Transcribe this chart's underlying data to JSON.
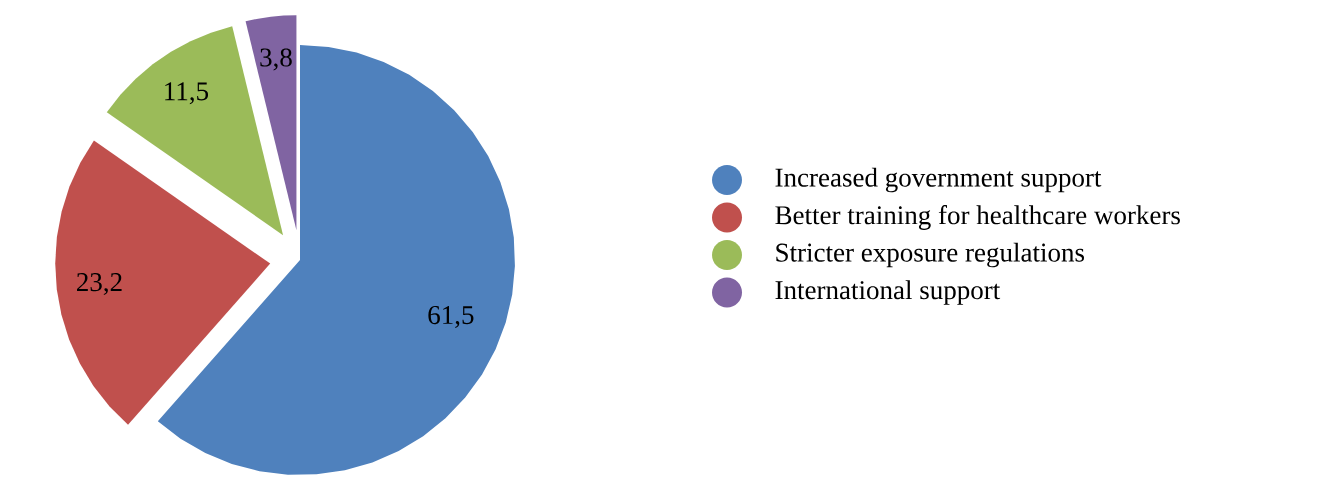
{
  "chart_data": {
    "type": "pie",
    "categories": [
      "Increased government support",
      "Better training for healthcare workers",
      "Stricter exposure regulations",
      "International support"
    ],
    "values": [
      61.5,
      23.2,
      11.5,
      3.8
    ],
    "colors": [
      "#4f81bd",
      "#c0504d",
      "#9bbb59",
      "#8064a2"
    ],
    "value_labels": [
      "61,5",
      "23,2",
      "11,5",
      "3,8"
    ],
    "legend": "right"
  }
}
